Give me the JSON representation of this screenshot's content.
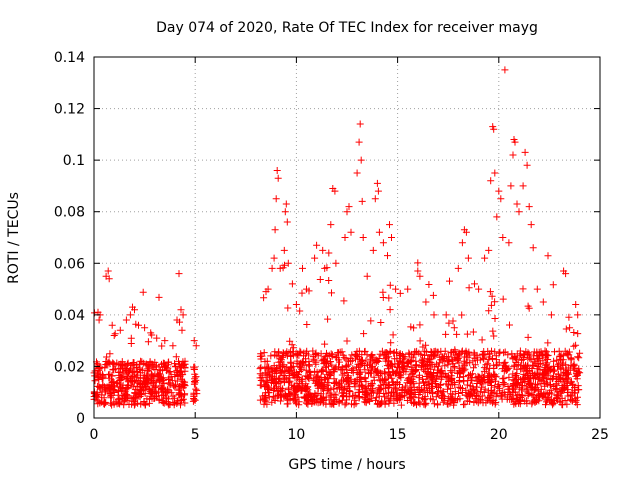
{
  "chart_data": {
    "type": "scatter",
    "title": "Day 074 of 2020, Rate Of TEC Index for receiver mayg",
    "xlabel": "GPS time / hours",
    "ylabel": "ROTI / TECUs",
    "xlim": [
      0,
      25
    ],
    "ylim": [
      0,
      0.14
    ],
    "x_ticks": [
      0,
      5,
      10,
      15,
      20,
      25
    ],
    "x_tick_labels": [
      "0",
      "5",
      "10",
      "15",
      "20",
      "25"
    ],
    "y_ticks": [
      0,
      0.02,
      0.04,
      0.06,
      0.08,
      0.1,
      0.12,
      0.14
    ],
    "y_tick_labels": [
      "0",
      "0.02",
      "0.04",
      "0.06",
      "0.08",
      "0.1",
      "0.12",
      "0.14"
    ],
    "grid": true,
    "marker": "+",
    "color": "#ff0000",
    "series": [
      {
        "name": "ROTI",
        "segments": [
          {
            "start": 0.0,
            "end": 4.5,
            "base_low": 0.005,
            "base_high": 0.022,
            "spread": 0.03
          },
          {
            "start": 4.9,
            "end": 5.1,
            "base_low": 0.006,
            "base_high": 0.02,
            "spread": 0.012
          },
          {
            "start": 8.2,
            "end": 24.0,
            "base_low": 0.005,
            "base_high": 0.026,
            "spread": 0.04
          }
        ],
        "points": [
          [
            0.2,
            0.041
          ],
          [
            0.25,
            0.038
          ],
          [
            0.3,
            0.04
          ],
          [
            0.6,
            0.055
          ],
          [
            0.7,
            0.057
          ],
          [
            0.75,
            0.054
          ],
          [
            0.9,
            0.036
          ],
          [
            1.0,
            0.032
          ],
          [
            1.3,
            0.034
          ],
          [
            1.6,
            0.038
          ],
          [
            1.8,
            0.04
          ],
          [
            1.9,
            0.043
          ],
          [
            2.0,
            0.042
          ],
          [
            2.2,
            0.036
          ],
          [
            2.5,
            0.035
          ],
          [
            2.8,
            0.033
          ],
          [
            3.1,
            0.031
          ],
          [
            3.5,
            0.03
          ],
          [
            3.9,
            0.028
          ],
          [
            4.1,
            0.038
          ],
          [
            4.2,
            0.056
          ],
          [
            4.3,
            0.042
          ],
          [
            4.4,
            0.04
          ],
          [
            4.35,
            0.034
          ],
          [
            4.95,
            0.03
          ],
          [
            5.05,
            0.028
          ],
          [
            8.5,
            0.049
          ],
          [
            8.6,
            0.05
          ],
          [
            8.8,
            0.058
          ],
          [
            8.9,
            0.062
          ],
          [
            8.95,
            0.073
          ],
          [
            9.0,
            0.085
          ],
          [
            9.05,
            0.096
          ],
          [
            9.1,
            0.093
          ],
          [
            9.2,
            0.058
          ],
          [
            9.4,
            0.065
          ],
          [
            9.45,
            0.08
          ],
          [
            9.5,
            0.083
          ],
          [
            9.55,
            0.076
          ],
          [
            9.6,
            0.06
          ],
          [
            9.8,
            0.052
          ],
          [
            10.0,
            0.044
          ],
          [
            10.3,
            0.058
          ],
          [
            10.5,
            0.05
          ],
          [
            10.9,
            0.062
          ],
          [
            11.0,
            0.067
          ],
          [
            11.3,
            0.065
          ],
          [
            11.4,
            0.058
          ],
          [
            11.6,
            0.064
          ],
          [
            11.7,
            0.075
          ],
          [
            11.8,
            0.089
          ],
          [
            11.9,
            0.088
          ],
          [
            11.95,
            0.06
          ],
          [
            12.4,
            0.07
          ],
          [
            12.5,
            0.08
          ],
          [
            12.6,
            0.082
          ],
          [
            12.7,
            0.072
          ],
          [
            13.0,
            0.095
          ],
          [
            13.1,
            0.107
          ],
          [
            13.15,
            0.114
          ],
          [
            13.2,
            0.1
          ],
          [
            13.25,
            0.084
          ],
          [
            13.3,
            0.07
          ],
          [
            13.5,
            0.055
          ],
          [
            13.8,
            0.065
          ],
          [
            13.9,
            0.085
          ],
          [
            14.0,
            0.091
          ],
          [
            14.05,
            0.088
          ],
          [
            14.1,
            0.072
          ],
          [
            14.3,
            0.068
          ],
          [
            14.5,
            0.063
          ],
          [
            14.6,
            0.075
          ],
          [
            14.7,
            0.07
          ],
          [
            14.9,
            0.05
          ],
          [
            15.5,
            0.05
          ],
          [
            16.0,
            0.057
          ],
          [
            16.1,
            0.055
          ],
          [
            16.4,
            0.045
          ],
          [
            16.8,
            0.04
          ],
          [
            17.4,
            0.04
          ],
          [
            17.8,
            0.035
          ],
          [
            18.0,
            0.058
          ],
          [
            18.2,
            0.068
          ],
          [
            18.3,
            0.073
          ],
          [
            18.4,
            0.072
          ],
          [
            18.5,
            0.062
          ],
          [
            18.8,
            0.052
          ],
          [
            19.0,
            0.05
          ],
          [
            19.3,
            0.062
          ],
          [
            19.5,
            0.065
          ],
          [
            19.6,
            0.092
          ],
          [
            19.7,
            0.113
          ],
          [
            19.75,
            0.112
          ],
          [
            19.8,
            0.095
          ],
          [
            19.9,
            0.078
          ],
          [
            20.0,
            0.088
          ],
          [
            20.1,
            0.085
          ],
          [
            20.2,
            0.07
          ],
          [
            20.3,
            0.135
          ],
          [
            20.5,
            0.068
          ],
          [
            20.6,
            0.09
          ],
          [
            20.7,
            0.102
          ],
          [
            20.75,
            0.108
          ],
          [
            20.8,
            0.107
          ],
          [
            20.9,
            0.083
          ],
          [
            21.0,
            0.08
          ],
          [
            21.2,
            0.09
          ],
          [
            21.3,
            0.103
          ],
          [
            21.4,
            0.098
          ],
          [
            21.5,
            0.082
          ],
          [
            21.6,
            0.075
          ],
          [
            21.7,
            0.066
          ],
          [
            21.9,
            0.05
          ],
          [
            22.2,
            0.045
          ],
          [
            22.6,
            0.04
          ],
          [
            23.2,
            0.057
          ],
          [
            23.3,
            0.056
          ],
          [
            23.5,
            0.035
          ],
          [
            23.8,
            0.044
          ],
          [
            23.9,
            0.04
          ]
        ]
      }
    ]
  }
}
